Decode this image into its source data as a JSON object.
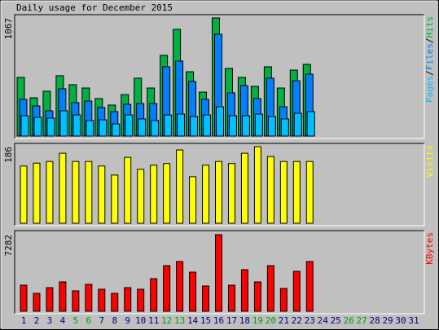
{
  "chart_data": [
    {
      "type": "overlap-bar",
      "title": "Daily usage for December 2015",
      "ylim": [
        0,
        1067
      ],
      "yticks": [
        1067
      ],
      "grid": false,
      "legend_separator": "/",
      "series": [
        {
          "name": "Hits",
          "color": "#00b040",
          "values": [
            530,
            346,
            405,
            545,
            464,
            434,
            339,
            280,
            375,
            523,
            434,
            729,
            964,
            581,
            397,
            1067,
            611,
            530,
            449,
            626,
            434,
            596,
            648,
            null,
            null,
            null,
            null,
            null,
            null,
            null,
            null
          ]
        },
        {
          "name": "Files",
          "color": "#0080ff",
          "values": [
            331,
            272,
            228,
            427,
            302,
            316,
            258,
            221,
            287,
            294,
            294,
            626,
            677,
            493,
            331,
            920,
            390,
            456,
            339,
            523,
            265,
            500,
            559,
            null,
            null,
            null,
            null,
            null,
            null,
            null,
            null
          ]
        },
        {
          "name": "Pages",
          "color": "#00c0ff",
          "values": [
            184,
            169,
            162,
            228,
            191,
            140,
            147,
            110,
            191,
            155,
            140,
            191,
            199,
            177,
            191,
            265,
            184,
            184,
            199,
            177,
            155,
            206,
            221,
            null,
            null,
            null,
            null,
            null,
            null,
            null,
            null
          ]
        }
      ]
    },
    {
      "type": "bar",
      "ylim": [
        0,
        186
      ],
      "yticks": [
        186
      ],
      "grid": false,
      "series": [
        {
          "name": "Visits",
          "color": "#ffff00",
          "values": [
            139,
            146,
            150,
            170,
            150,
            150,
            139,
            117,
            160,
            131,
            141,
            145,
            178,
            113,
            141,
            150,
            145,
            170,
            186,
            162,
            150,
            150,
            150,
            null,
            null,
            null,
            null,
            null,
            null,
            null,
            null
          ]
        }
      ]
    },
    {
      "type": "bar",
      "ylim": [
        0,
        7282
      ],
      "yticks": [
        7282
      ],
      "grid": false,
      "categories": [
        1,
        2,
        3,
        4,
        5,
        6,
        7,
        8,
        9,
        10,
        11,
        12,
        13,
        14,
        15,
        16,
        17,
        18,
        19,
        20,
        21,
        22,
        23,
        24,
        25,
        26,
        27,
        28,
        29,
        30,
        31
      ],
      "category_colors": [
        "#000080",
        "#000080",
        "#000080",
        "#000080",
        "#00a000",
        "#00a000",
        "#000080",
        "#000080",
        "#000080",
        "#000080",
        "#000080",
        "#00a000",
        "#00a000",
        "#000080",
        "#000080",
        "#000080",
        "#000080",
        "#000080",
        "#00a000",
        "#00a000",
        "#000080",
        "#000080",
        "#000080",
        "#000080",
        "#000080",
        "#00a000",
        "#00a000",
        "#000080",
        "#000080",
        "#000080",
        "#000080"
      ],
      "series": [
        {
          "name": "KBytes",
          "color": "#ff0000",
          "values": [
            2480,
            1705,
            2248,
            2790,
            1938,
            2558,
            2093,
            1705,
            2248,
            2093,
            3100,
            4340,
            4728,
            3720,
            2403,
            7282,
            2480,
            3953,
            2790,
            4340,
            2170,
            3798,
            4728,
            null,
            null,
            null,
            null,
            null,
            null,
            null,
            null
          ]
        }
      ]
    }
  ]
}
